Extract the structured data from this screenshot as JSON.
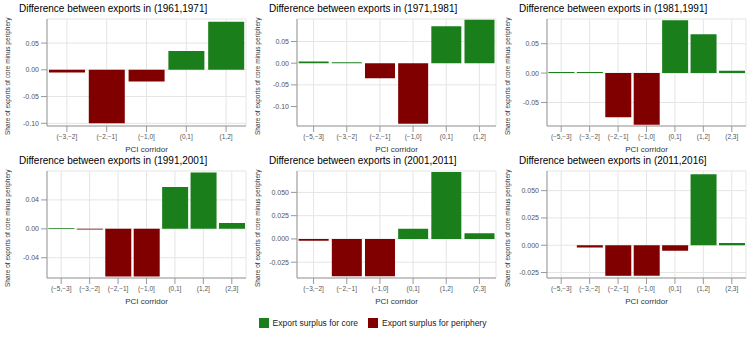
{
  "chart_data": [
    {
      "type": "bar",
      "title": "Difference between exports in (1961,1971]",
      "x_label": "PCI corridor",
      "y_label": "Share of exports of core minus periphery",
      "categories": [
        "(−3,−2]",
        "(−2,−1]",
        "(−1,0]",
        "(0,1]",
        "(1,2]"
      ],
      "values": [
        -0.005,
        -0.1,
        -0.022,
        0.035,
        0.09
      ],
      "colors": [
        "#800000",
        "#800000",
        "#800000",
        "#1a7f1a",
        "#1a7f1a"
      ],
      "ylim": [
        -0.105,
        0.095
      ],
      "yticks": [
        {
          "value": -0.1,
          "label": "-0.10"
        },
        -0.05,
        {
          "value": 0,
          "label": "0.00"
        },
        0.05
      ],
      "grid": true
    },
    {
      "type": "bar",
      "title": "Difference between exports in (1971,1981]",
      "x_label": "PCI corridor",
      "y_label": "Share of exports of core minus periphery",
      "categories": [
        "(−5,−3]",
        "(−3,−2]",
        "(−2,−1]",
        "(−1,0]",
        "(0,1]",
        "(1,2]"
      ],
      "values": [
        0.004,
        0.002,
        -0.035,
        -0.14,
        0.085,
        0.1
      ],
      "colors": [
        "#1a7f1a",
        "#1a7f1a",
        "#800000",
        "#800000",
        "#1a7f1a",
        "#1a7f1a"
      ],
      "ylim": [
        -0.145,
        0.102
      ],
      "yticks": [
        {
          "value": -0.1,
          "label": "-0.10"
        },
        -0.05,
        {
          "value": 0,
          "label": "0.00"
        },
        0.05
      ],
      "grid": true
    },
    {
      "type": "bar",
      "title": "Difference between exports in (1981,1991]",
      "x_label": "PCI corridor",
      "y_label": "Share of exports of core minus periphery",
      "categories": [
        "(−5,−3]",
        "(−3,−2]",
        "(−2,−1]",
        "(−1,0]",
        "(0,1]",
        "(1,2]",
        "(2,3]"
      ],
      "values": [
        0.002,
        0.002,
        -0.075,
        -0.088,
        0.09,
        0.066,
        0.004
      ],
      "colors": [
        "#1a7f1a",
        "#1a7f1a",
        "#800000",
        "#800000",
        "#1a7f1a",
        "#1a7f1a",
        "#1a7f1a"
      ],
      "ylim": [
        -0.09,
        0.092
      ],
      "yticks": [
        -0.05,
        {
          "value": 0,
          "label": "0.00"
        },
        0.05
      ],
      "grid": true
    },
    {
      "type": "bar",
      "title": "Difference between exports in (1991,2001]",
      "x_label": "PCI corridor",
      "y_label": "Share of exports of core minus periphery",
      "categories": [
        "(−5,−3]",
        "(−3,−2]",
        "(−2,−1]",
        "(−1,0]",
        "(0,1]",
        "(1,2]",
        "(2,3]"
      ],
      "values": [
        0.001,
        -0.001,
        -0.066,
        -0.066,
        0.058,
        0.078,
        0.008
      ],
      "colors": [
        "#1a7f1a",
        "#800000",
        "#800000",
        "#800000",
        "#1a7f1a",
        "#1a7f1a",
        "#1a7f1a"
      ],
      "ylim": [
        -0.068,
        0.08
      ],
      "yticks": [
        -0.04,
        {
          "value": 0,
          "label": "0.00"
        },
        0.04
      ],
      "grid": true
    },
    {
      "type": "bar",
      "title": "Difference between exports in (2001,2011]",
      "x_label": "PCI corridor",
      "y_label": "Share of exports of core minus periphery",
      "categories": [
        "(−3,−2]",
        "(−2,−1]",
        "(−1,0]",
        "(0,1]",
        "(1,2]",
        "(2,3]"
      ],
      "values": [
        -0.002,
        -0.04,
        -0.04,
        0.011,
        0.072,
        0.006
      ],
      "colors": [
        "#800000",
        "#800000",
        "#800000",
        "#1a7f1a",
        "#1a7f1a",
        "#1a7f1a"
      ],
      "ylim": [
        -0.042,
        0.073
      ],
      "yticks": [
        -0.025,
        {
          "value": 0,
          "label": "0.000"
        },
        0.025,
        {
          "value": 0.05,
          "label": "0.050"
        }
      ],
      "grid": true
    },
    {
      "type": "bar",
      "title": "Difference between exports in (2011,2016]",
      "x_label": "PCI corridor",
      "y_label": "Share of exports of core minus periphery",
      "categories": [
        "(−5,−3]",
        "(−3,−2]",
        "(−2,−1]",
        "(−1,0]",
        "(0,1]",
        "(1,2]",
        "(2,3]"
      ],
      "values": [
        0,
        -0.002,
        -0.028,
        -0.028,
        -0.005,
        0.065,
        0.002
      ],
      "colors": [
        "#1a7f1a",
        "#800000",
        "#800000",
        "#800000",
        "#800000",
        "#1a7f1a",
        "#1a7f1a"
      ],
      "ylim": [
        -0.03,
        0.068
      ],
      "yticks": [
        -0.025,
        {
          "value": 0,
          "label": "0.000"
        },
        0.025,
        {
          "value": 0.05,
          "label": "0.050"
        }
      ],
      "grid": true
    }
  ],
  "legend": [
    {
      "name": "Export surplus for core",
      "color": "#1a7f1a"
    },
    {
      "name": "Export surplus for periphery",
      "color": "#800000"
    }
  ]
}
